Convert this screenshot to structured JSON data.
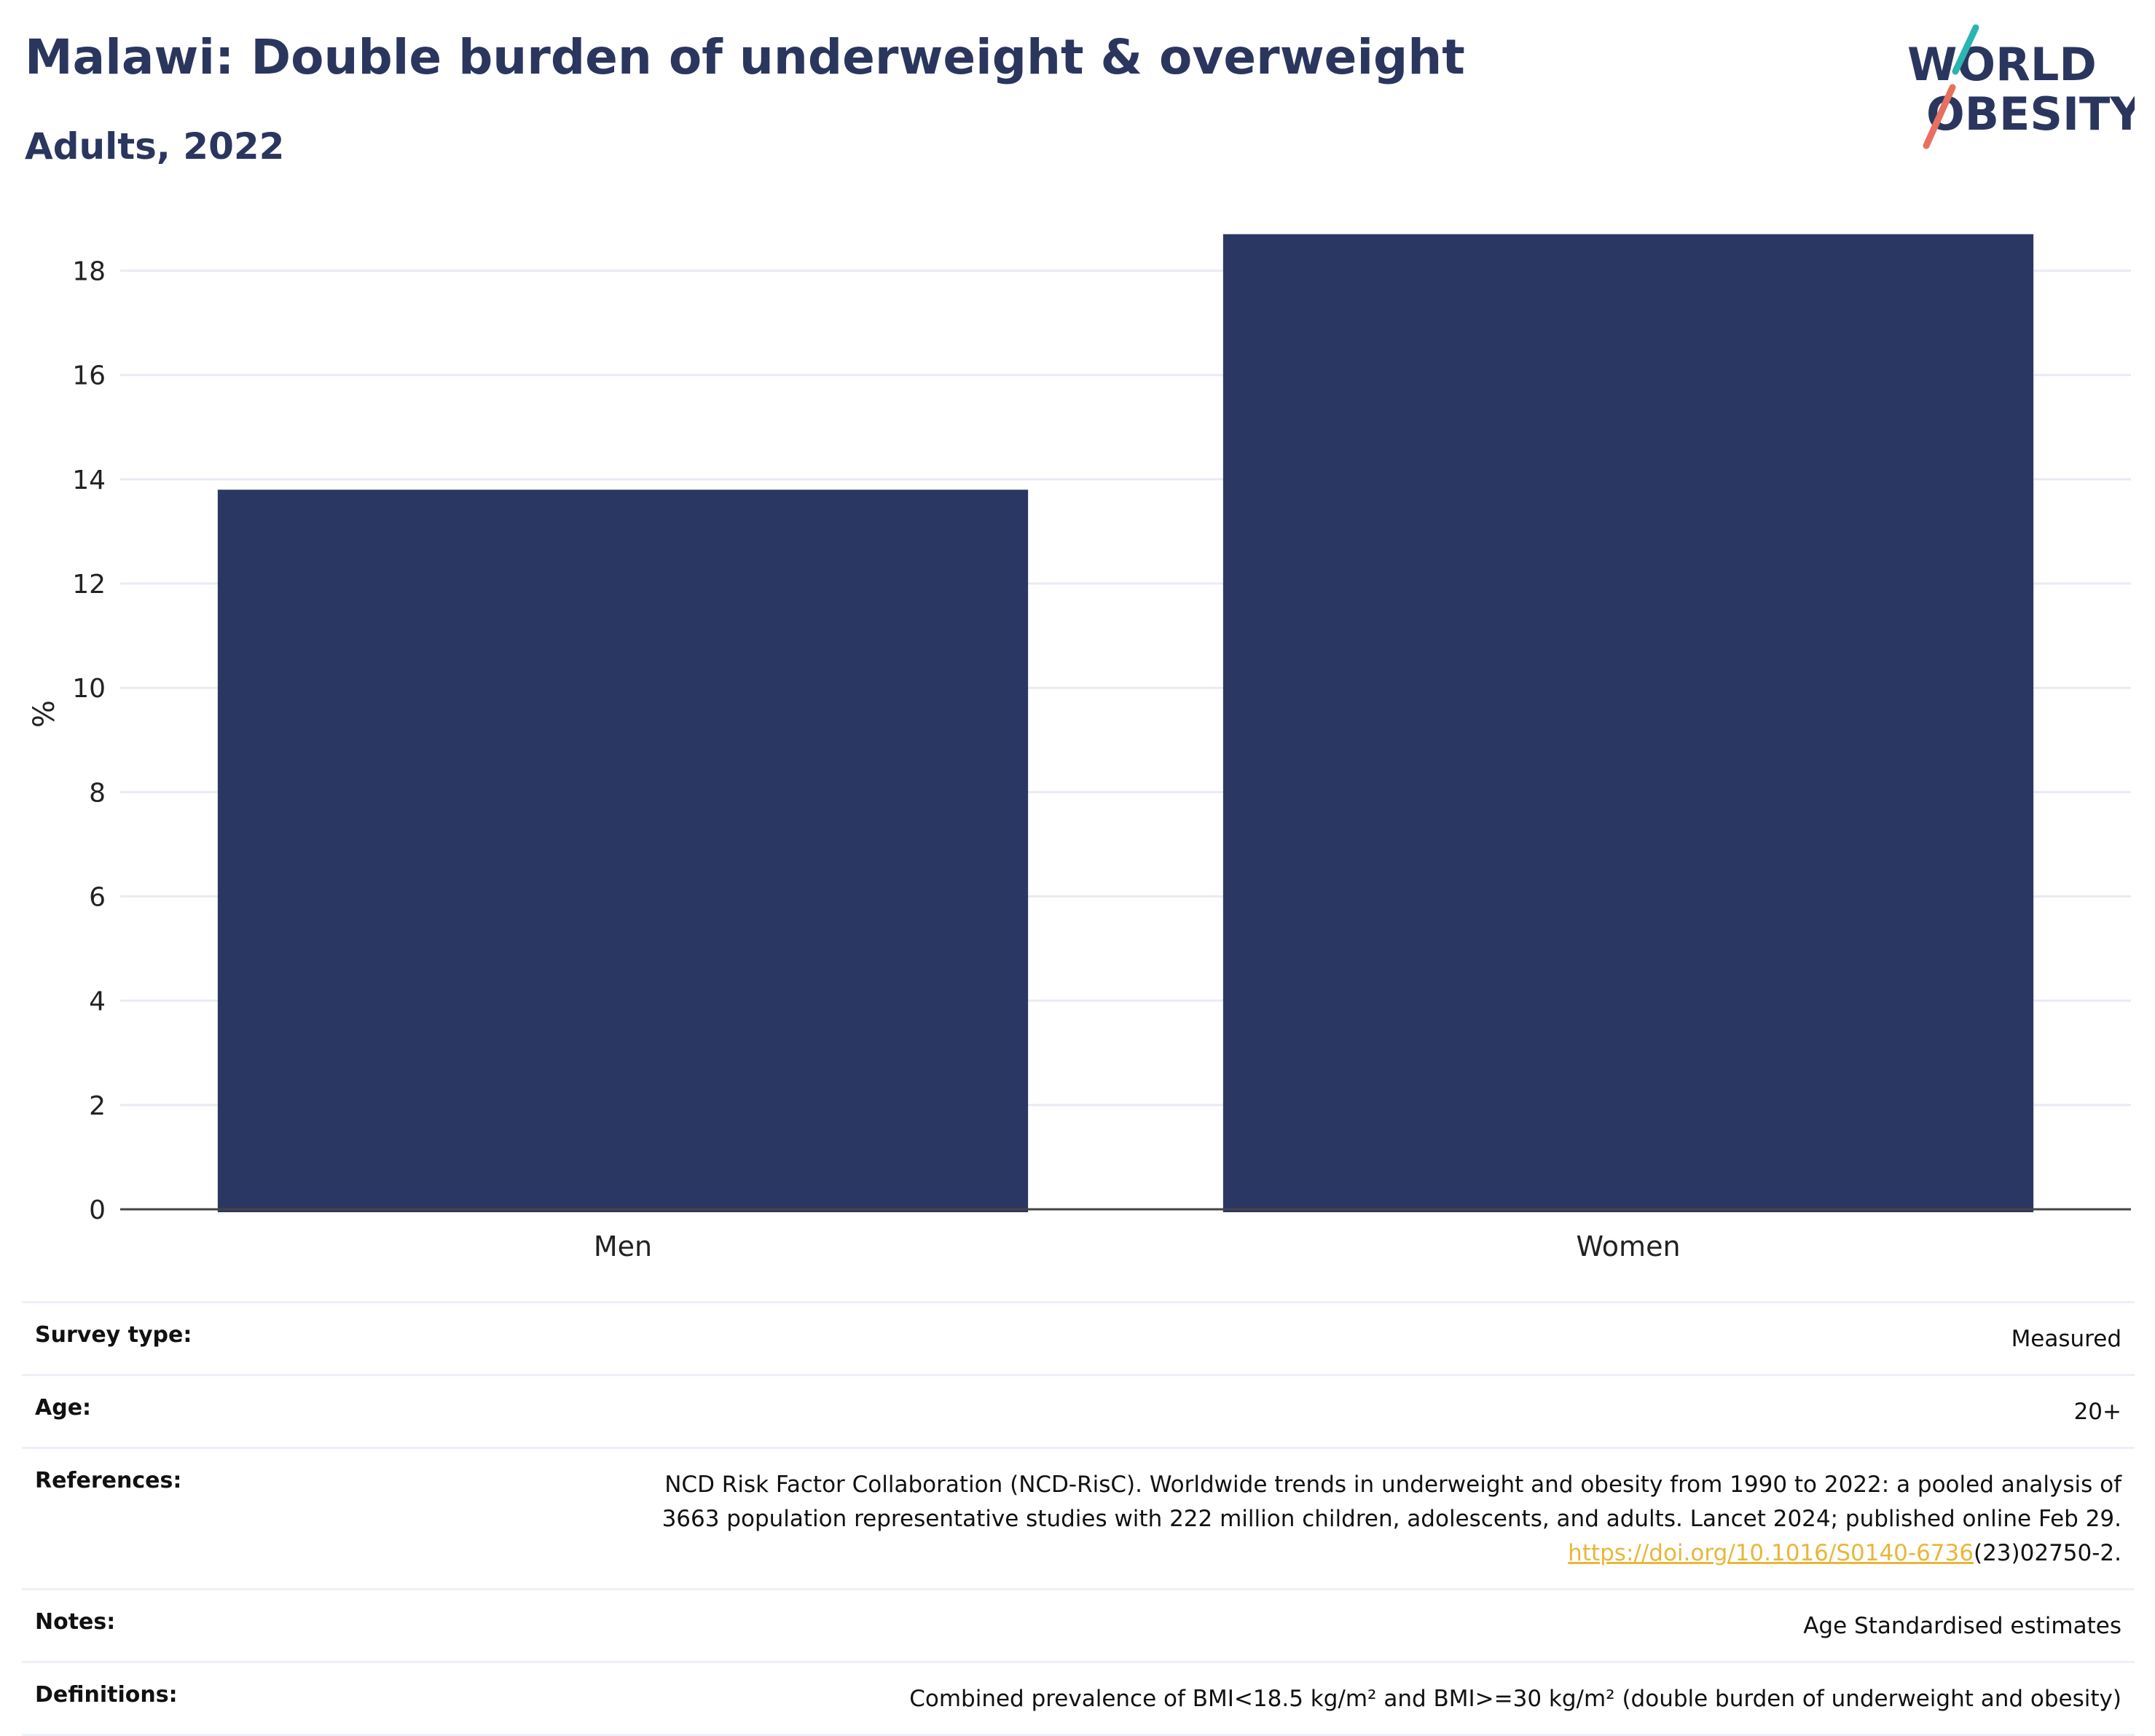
{
  "header": {
    "title": "Malawi: Double burden of underweight & overweight",
    "subtitle": "Adults, 2022"
  },
  "logo": {
    "line1": "WORLD",
    "line2": "OBESITY",
    "accent_teal": "#2bb5b0",
    "accent_coral": "#e8705f"
  },
  "colors": {
    "bar": "#2b3763",
    "grid": "#e8ebf2",
    "axis": "#444444"
  },
  "chart_data": {
    "type": "bar",
    "categories": [
      "Men",
      "Women"
    ],
    "values": [
      13.8,
      18.7
    ],
    "ylabel": "%",
    "xlabel": "",
    "ylim": [
      0,
      19
    ],
    "yticks": [
      0,
      2,
      4,
      6,
      8,
      10,
      12,
      14,
      16,
      18
    ],
    "grid": true,
    "legend": "none"
  },
  "meta": [
    {
      "label": "Survey type:",
      "value": "Measured"
    },
    {
      "label": "Age:",
      "value": "20+"
    },
    {
      "label": "References:",
      "value_line1": "NCD Risk Factor Collaboration (NCD-RisC). Worldwide trends in underweight and obesity from 1990 to 2022: a pooled analysis of",
      "value_line2": "3663 population representative studies with 222 million children, adolescents, and adults. Lancet 2024; published online Feb 29.",
      "link_text": "https://doi.org/10.1016/S0140-6736",
      "link_suffix": "(23)02750-2."
    },
    {
      "label": "Notes:",
      "value": "Age Standardised estimates"
    },
    {
      "label": "Definitions:",
      "value": "Combined prevalence of BMI<18.5 kg/m² and BMI>=30 kg/m² (double burden of underweight and obesity)"
    }
  ]
}
